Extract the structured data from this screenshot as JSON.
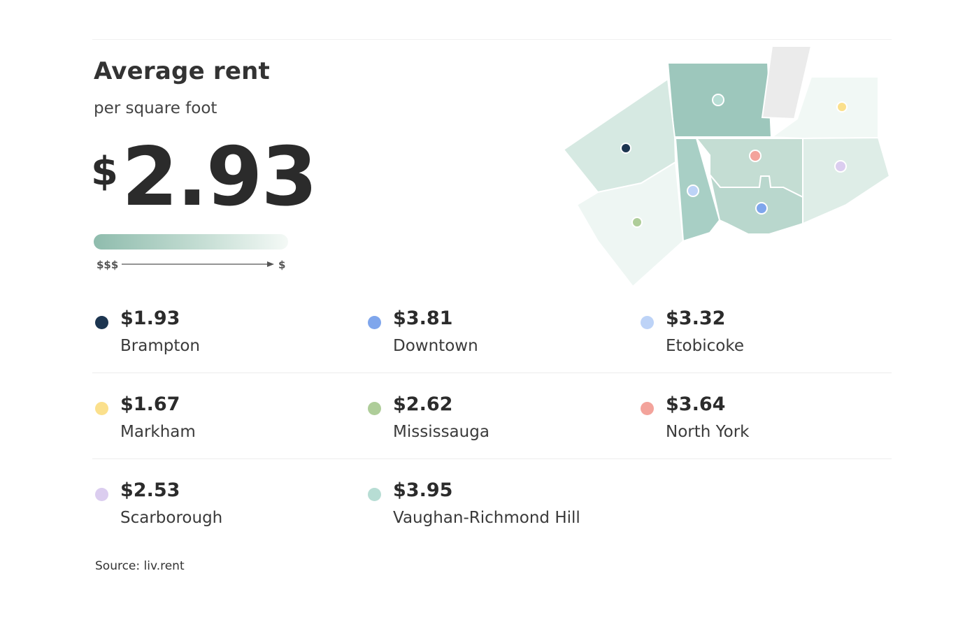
{
  "header": {
    "title": "Average rent",
    "subtitle": "per square foot",
    "currency_symbol": "$",
    "average_value": "2.93"
  },
  "scale": {
    "left_label": "$$$",
    "right_label": "$",
    "gradient_colors": [
      "#8fbcad",
      "#c4ddd3",
      "#f4f9f6"
    ]
  },
  "legend": [
    {
      "price": "$1.93",
      "name": "Brampton",
      "color": "#1c3550"
    },
    {
      "price": "$3.81",
      "name": "Downtown",
      "color": "#7fa6ec"
    },
    {
      "price": "$3.32",
      "name": "Etobicoke",
      "color": "#bdd3f7"
    },
    {
      "price": "$1.67",
      "name": "Markham",
      "color": "#fbe08c"
    },
    {
      "price": "$2.62",
      "name": "Mississauga",
      "color": "#aecd99"
    },
    {
      "price": "$3.64",
      "name": "North York",
      "color": "#f3a39b"
    },
    {
      "price": "$2.53",
      "name": "Scarborough",
      "color": "#dbcdef"
    },
    {
      "price": "$3.95",
      "name": "Vaughan-Richmond Hill",
      "color": "#b7ddd4"
    }
  ],
  "source": "Source: liv.rent"
}
